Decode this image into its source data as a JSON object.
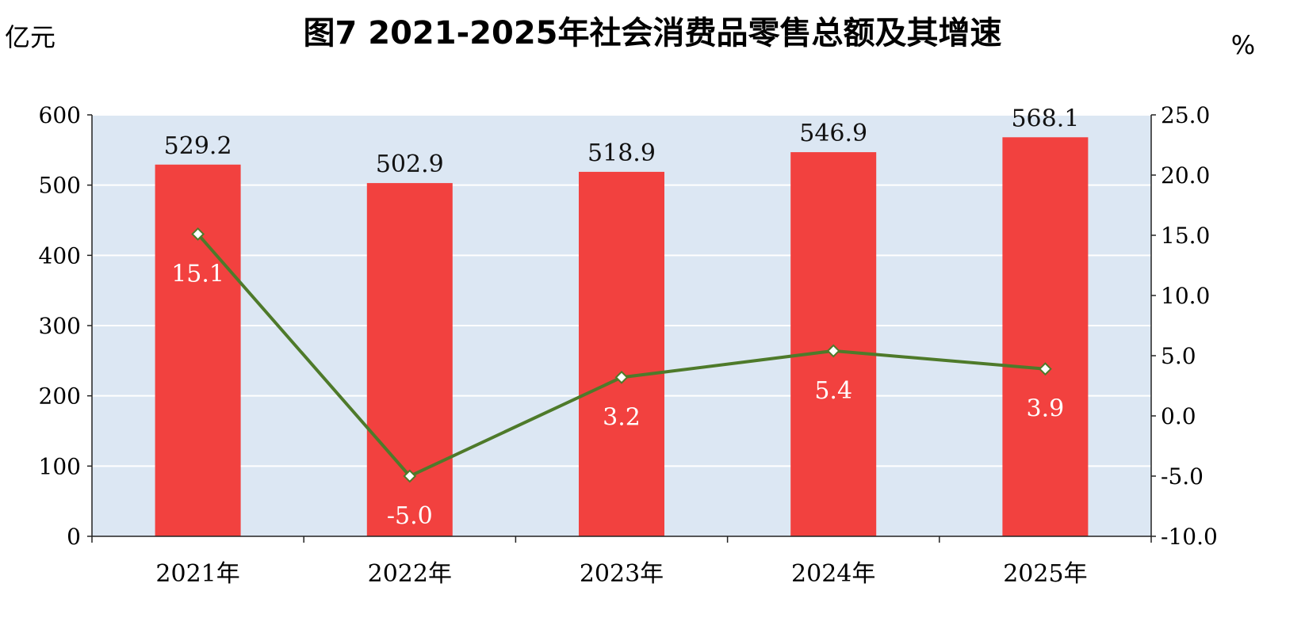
{
  "chart_data": {
    "type": "bar",
    "title": "图7  2021-2025年社会消费品零售总额及其增速",
    "ylabel": "亿元",
    "y2label": "%",
    "categories": [
      "2021年",
      "2022年",
      "2023年",
      "2024年",
      "2025年"
    ],
    "ylim": [
      0,
      600
    ],
    "yticks": [
      0,
      100,
      200,
      300,
      400,
      500,
      600
    ],
    "y2lim": [
      -10.0,
      25.0
    ],
    "y2ticks": [
      "-10.0",
      "-5.0",
      "0.0",
      "5.0",
      "10.0",
      "15.0",
      "20.0",
      "25.0"
    ],
    "grid": true,
    "series": [
      {
        "type": "bar",
        "axis": "left",
        "values": [
          529.2,
          502.9,
          518.9,
          546.9,
          568.1
        ],
        "labels": [
          "529.2",
          "502.9",
          "518.9",
          "546.9",
          "568.1"
        ],
        "color": "#f2413f"
      },
      {
        "type": "line",
        "axis": "right",
        "values": [
          15.1,
          -5.0,
          3.2,
          5.4,
          3.9
        ],
        "labels": [
          "15.1",
          "-5.0",
          "3.2",
          "5.4",
          "3.9"
        ],
        "color": "#4e7a2a",
        "marker": "diamond"
      }
    ],
    "colors": {
      "plot_background": "#dce7f3",
      "gridline": "#ffffff"
    }
  }
}
